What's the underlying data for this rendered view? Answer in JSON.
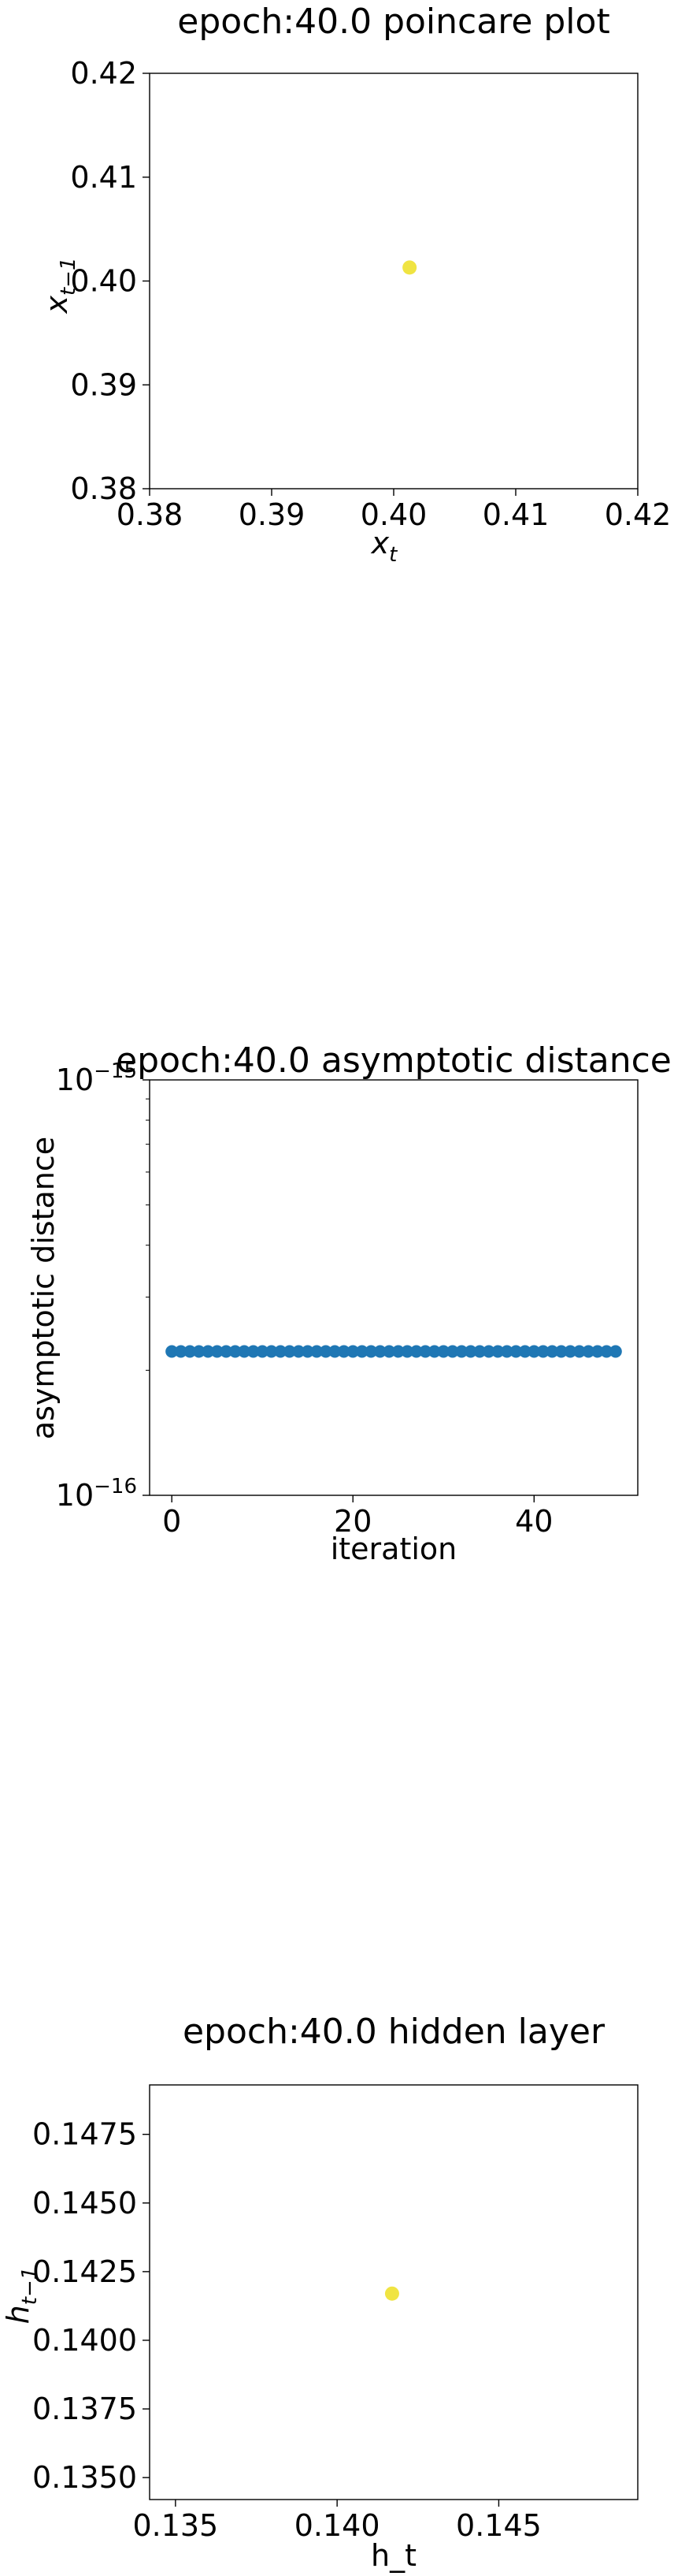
{
  "chart_data": [
    {
      "type": "scatter",
      "title": "epoch:40.0 poincare plot",
      "xlabel": "x_t",
      "ylabel": "x_{t-1}",
      "xlim": [
        0.38,
        0.42
      ],
      "ylim": [
        0.38,
        0.42
      ],
      "x_ticks": [
        "0.38",
        "0.39",
        "0.40",
        "0.41",
        "0.42"
      ],
      "y_ticks": [
        "0.38",
        "0.39",
        "0.40",
        "0.41",
        "0.42"
      ],
      "points": [
        {
          "x": 0.4013,
          "y": 0.4013
        }
      ],
      "point_color": "#f0e442",
      "grid": false
    },
    {
      "type": "scatter",
      "title": "epoch:40.0 asymptotic distance",
      "xlabel": "iteration",
      "ylabel": "asymptotic distance",
      "yscale": "log",
      "ylim": [
        1e-16,
        1e-15
      ],
      "xlim": [
        -2.45,
        51.45
      ],
      "x_ticks": [
        "0",
        "20",
        "40"
      ],
      "y_ticks": [
        "10^-16",
        "10^-15"
      ],
      "n_points": 50,
      "y_value": 2.22e-16,
      "point_color": "#1f77b4",
      "grid": false
    },
    {
      "type": "scatter",
      "title": "epoch:40.0 hidden layer",
      "xlabel": "h_t",
      "ylabel": "h_{t-1}",
      "xlim": [
        0.1342,
        0.1493
      ],
      "ylim": [
        0.1342,
        0.1493
      ],
      "x_ticks": [
        "0.135",
        "0.140",
        "0.145"
      ],
      "y_ticks": [
        "0.1350",
        "0.1375",
        "0.1400",
        "0.1425",
        "0.1450",
        "0.1475"
      ],
      "points": [
        {
          "x": 0.1417,
          "y": 0.1417
        }
      ],
      "point_color": "#f0e442",
      "grid": false
    }
  ]
}
